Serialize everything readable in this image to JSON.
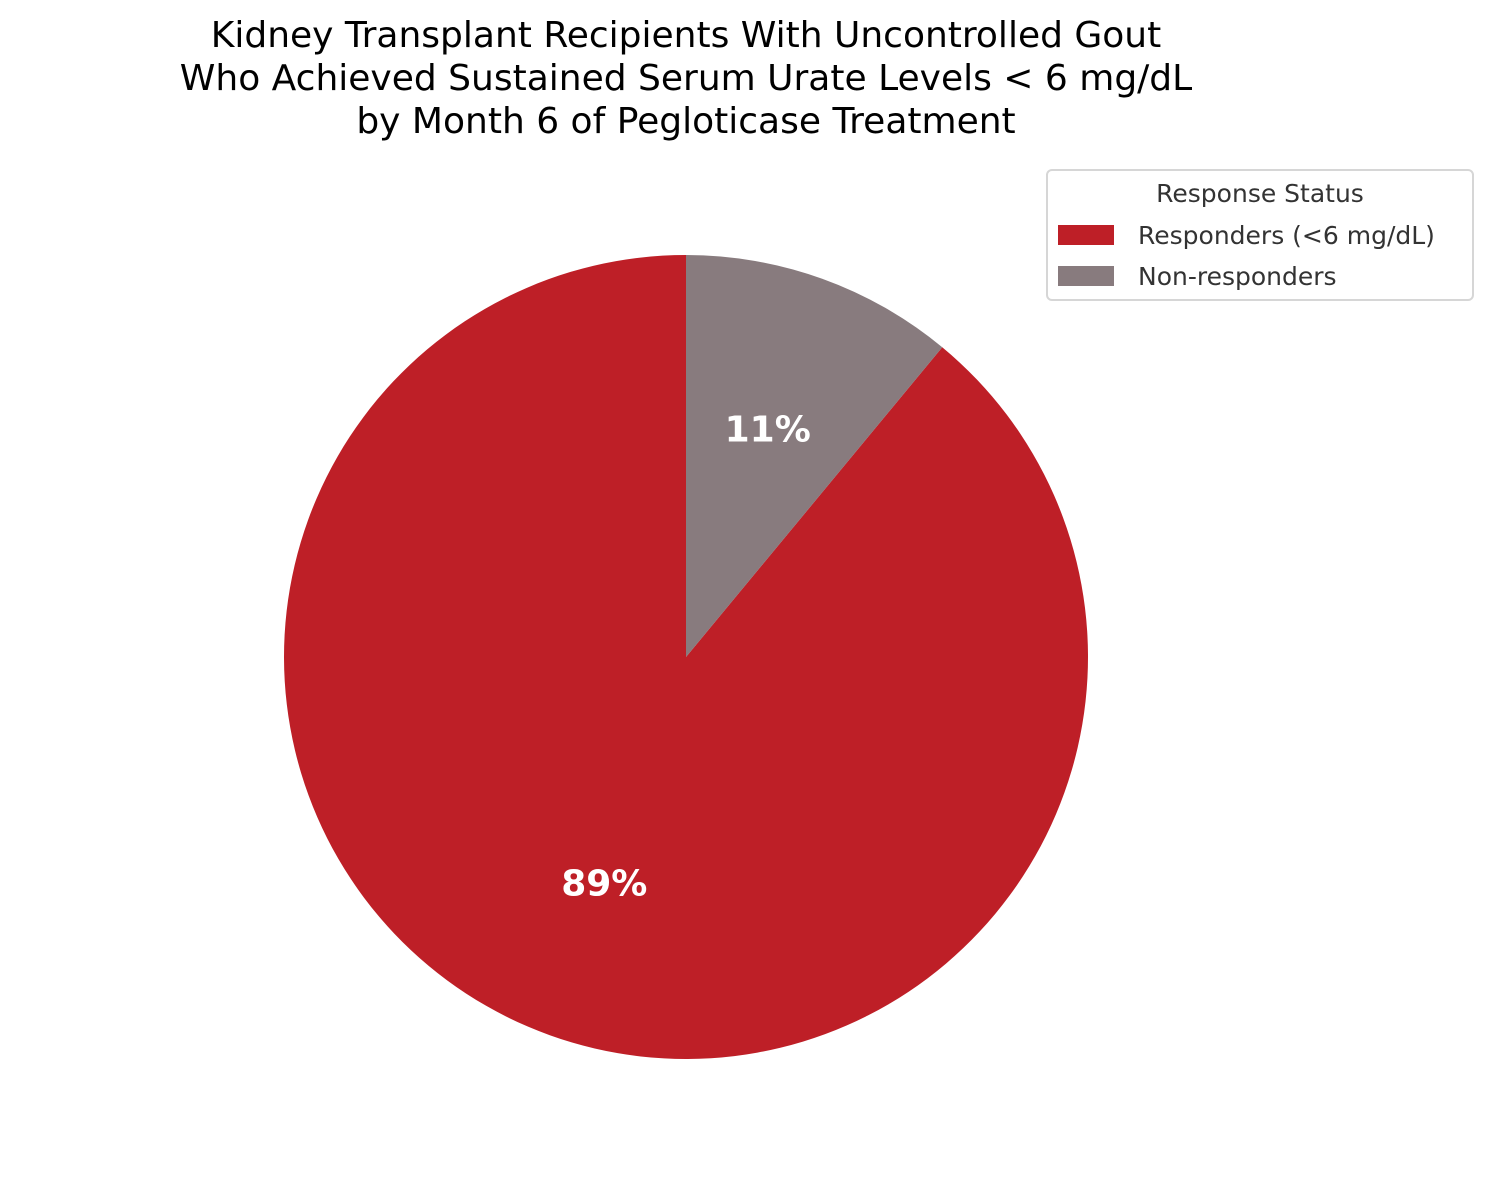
{
  "chart_data": {
    "type": "pie",
    "title": "Kidney Transplant Recipients With Uncontrolled Gout Who Achieved Sustained Serum Urate Levels < 6 mg/dL by Month 6 of Pegloticase Treatment",
    "title_lines": [
      "Kidney Transplant Recipients With Uncontrolled Gout",
      "Who Achieved Sustained Serum Urate Levels < 6 mg/dL",
      "by Month 6 of Pegloticase Treatment"
    ],
    "categories": [
      "Responders (<6 mg/dL)",
      "Non-responders"
    ],
    "values": [
      89,
      11
    ],
    "labels": [
      "89%",
      "11%"
    ],
    "colors": [
      "#be1f27",
      "#887b7e"
    ],
    "start_angle": 90,
    "direction": "clockwise",
    "legend": {
      "title": "Response Status",
      "position": "upper right",
      "entries": [
        "Responders (<6 mg/dL)",
        "Non-responders"
      ]
    }
  }
}
